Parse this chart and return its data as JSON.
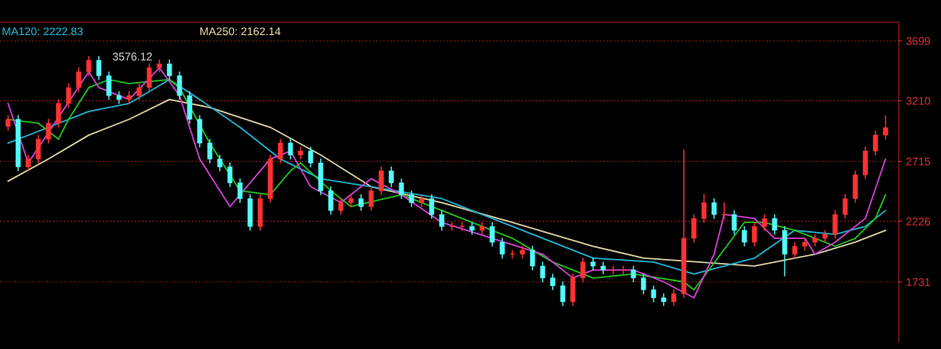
{
  "chart_data": {
    "type": "candlestick",
    "categories": [
      null,
      null,
      null,
      null,
      null,
      null,
      null,
      null,
      null,
      null,
      null,
      null,
      null,
      null,
      null,
      null,
      null,
      null,
      null,
      null,
      null,
      null,
      null,
      null,
      null,
      null,
      null,
      null,
      null,
      null,
      null,
      null,
      null,
      null,
      null,
      null,
      null,
      null,
      null,
      null,
      null,
      null,
      null,
      null,
      null,
      null,
      null,
      null,
      null,
      null,
      null,
      null,
      null,
      null,
      null,
      null,
      null,
      null,
      null,
      null,
      null,
      null,
      null,
      null,
      null,
      null,
      null,
      null,
      null,
      null,
      null,
      null,
      null,
      null,
      null,
      null,
      null,
      null,
      null,
      null,
      null,
      null,
      null,
      null,
      null,
      null,
      null,
      null
    ],
    "ohlc": [
      [
        3000,
        3093,
        2965,
        3058
      ],
      [
        3058,
        3093,
        2635,
        2670
      ],
      [
        2670,
        2769,
        2635,
        2734
      ],
      [
        2734,
        2931,
        2699,
        2896
      ],
      [
        2896,
        3061,
        2861,
        3026
      ],
      [
        3026,
        3223,
        2991,
        3188
      ],
      [
        3188,
        3352,
        3153,
        3317
      ],
      [
        3317,
        3482,
        3282,
        3447
      ],
      [
        3447,
        3576.12,
        3412,
        3540
      ],
      [
        3540,
        3575,
        3379,
        3414
      ],
      [
        3414,
        3449,
        3217,
        3252
      ],
      [
        3252,
        3287,
        3185,
        3220
      ],
      [
        3220,
        3287,
        3185,
        3252
      ],
      [
        3252,
        3352,
        3217,
        3317
      ],
      [
        3317,
        3514,
        3282,
        3479
      ],
      [
        3479,
        3546,
        3444,
        3511
      ],
      [
        3511,
        3546,
        3379,
        3414
      ],
      [
        3414,
        3449,
        3217,
        3252
      ],
      [
        3252,
        3287,
        3023,
        3058
      ],
      [
        3058,
        3093,
        2829,
        2864
      ],
      [
        2864,
        2899,
        2699,
        2734
      ],
      [
        2734,
        2769,
        2635,
        2670
      ],
      [
        2670,
        2705,
        2505,
        2540
      ],
      [
        2540,
        2575,
        2376,
        2411
      ],
      [
        2411,
        2446,
        2149,
        2184
      ],
      [
        2184,
        2446,
        2149,
        2411
      ],
      [
        2411,
        2769,
        2376,
        2734
      ],
      [
        2734,
        2899,
        2699,
        2864
      ],
      [
        2864,
        2899,
        2732,
        2767
      ],
      [
        2767,
        2834,
        2732,
        2799
      ],
      [
        2799,
        2834,
        2667,
        2702
      ],
      [
        2702,
        2737,
        2440,
        2475
      ],
      [
        2475,
        2510,
        2279,
        2314
      ],
      [
        2314,
        2413,
        2279,
        2378
      ],
      [
        2378,
        2446,
        2343,
        2411
      ],
      [
        2411,
        2446,
        2311,
        2346
      ],
      [
        2346,
        2510,
        2311,
        2475
      ],
      [
        2475,
        2672,
        2440,
        2637
      ],
      [
        2637,
        2672,
        2505,
        2540
      ],
      [
        2540,
        2575,
        2408,
        2443
      ],
      [
        2443,
        2478,
        2343,
        2378
      ],
      [
        2378,
        2446,
        2343,
        2411
      ],
      [
        2411,
        2446,
        2246,
        2281
      ],
      [
        2281,
        2316,
        2149,
        2184
      ],
      [
        2184,
        2219,
        2149,
        2184
      ],
      [
        2184,
        2219,
        2149,
        2184
      ],
      [
        2184,
        2219,
        2117,
        2152
      ],
      [
        2152,
        2219,
        2117,
        2184
      ],
      [
        2184,
        2219,
        2020,
        2055
      ],
      [
        2055,
        2090,
        1922,
        1957
      ],
      [
        1957,
        1992,
        1922,
        1957
      ],
      [
        1957,
        2025,
        1922,
        1990
      ],
      [
        1990,
        2025,
        1825,
        1860
      ],
      [
        1860,
        1895,
        1728,
        1763
      ],
      [
        1763,
        1798,
        1664,
        1699
      ],
      [
        1699,
        1734,
        1534,
        1569
      ],
      [
        1569,
        1798,
        1534,
        1763
      ],
      [
        1763,
        1928,
        1728,
        1893
      ],
      [
        1893,
        1928,
        1825,
        1860
      ],
      [
        1860,
        1895,
        1793,
        1828
      ],
      [
        1828,
        1863,
        1793,
        1828
      ],
      [
        1828,
        1863,
        1793,
        1828
      ],
      [
        1828,
        1863,
        1728,
        1763
      ],
      [
        1763,
        1798,
        1631,
        1666
      ],
      [
        1666,
        1701,
        1566,
        1601
      ],
      [
        1601,
        1636,
        1534,
        1569
      ],
      [
        1569,
        1669,
        1534,
        1634
      ],
      [
        1634,
        2812,
        1599,
        2087
      ],
      [
        2087,
        2284,
        2052,
        2249
      ],
      [
        2249,
        2450,
        2214,
        2378
      ],
      [
        2378,
        2413,
        2246,
        2281
      ],
      [
        2281,
        2380,
        2246,
        2281
      ],
      [
        2281,
        2316,
        2117,
        2152
      ],
      [
        2152,
        2187,
        2020,
        2055
      ],
      [
        2055,
        2219,
        2020,
        2184
      ],
      [
        2184,
        2284,
        2149,
        2249
      ],
      [
        2249,
        2284,
        2117,
        2152
      ],
      [
        2152,
        2187,
        1776,
        1957
      ],
      [
        1957,
        2057,
        1922,
        2022
      ],
      [
        2022,
        2090,
        1987,
        2055
      ],
      [
        2055,
        2122,
        2020,
        2087
      ],
      [
        2087,
        2154,
        2052,
        2119
      ],
      [
        2119,
        2316,
        2084,
        2281
      ],
      [
        2281,
        2446,
        2246,
        2411
      ],
      [
        2411,
        2640,
        2376,
        2605
      ],
      [
        2605,
        2834,
        2570,
        2799
      ],
      [
        2799,
        2965,
        2764,
        2930
      ],
      [
        2930,
        3090,
        2895,
        2990
      ]
    ],
    "series": [
      {
        "type": "line",
        "color": "#d8d0a0",
        "values": [
          2553,
          null,
          null,
          null,
          2734,
          null,
          null,
          null,
          2929,
          null,
          null,
          null,
          3058,
          null,
          null,
          null,
          3220,
          null,
          null,
          null,
          3155,
          null,
          null,
          null,
          null,
          null,
          2993,
          null,
          null,
          null,
          null,
          2767,
          null,
          null,
          null,
          null,
          2508,
          null,
          null,
          null,
          null,
          null,
          null,
          2378,
          null,
          null,
          null,
          null,
          null,
          null,
          2216,
          null,
          null,
          null,
          null,
          null,
          null,
          null,
          2022,
          null,
          null,
          null,
          null,
          1925,
          null,
          null,
          null,
          null,
          null,
          null,
          null,
          null,
          null,
          null,
          1860,
          null,
          null,
          null,
          null,
          null,
          1957,
          null,
          null,
          null,
          2055,
          null,
          null,
          2152
        ]
      },
      {
        "type": "line",
        "color": "#20b0d0",
        "values": [
          2864,
          null,
          null,
          null,
          2993,
          null,
          null,
          null,
          3123,
          null,
          null,
          null,
          3188,
          null,
          null,
          null,
          3382,
          null,
          null,
          3220,
          null,
          null,
          null,
          2993,
          null,
          null,
          null,
          2734,
          null,
          null,
          null,
          2573,
          null,
          null,
          null,
          null,
          2508,
          null,
          null,
          null,
          null,
          null,
          null,
          2411,
          null,
          null,
          null,
          null,
          null,
          null,
          2184,
          null,
          null,
          null,
          null,
          null,
          null,
          null,
          1925,
          null,
          null,
          null,
          null,
          null,
          1893,
          null,
          null,
          null,
          1795,
          null,
          null,
          null,
          null,
          null,
          1925,
          null,
          null,
          null,
          2152,
          null,
          null,
          null,
          2119,
          null,
          null,
          2184,
          null,
          2314
        ]
      },
      {
        "type": "line",
        "color": "#20c020",
        "values": [
          3058,
          null,
          null,
          3026,
          null,
          2896,
          3058,
          null,
          3317,
          null,
          3382,
          null,
          3350,
          null,
          null,
          null,
          3382,
          3317,
          null,
          null,
          2864,
          null,
          null,
          2475,
          null,
          null,
          2443,
          null,
          2637,
          2702,
          null,
          null,
          2475,
          null,
          2346,
          null,
          null,
          null,
          null,
          2443,
          null,
          null,
          null,
          2314,
          null,
          null,
          null,
          null,
          null,
          null,
          2087,
          null,
          null,
          null,
          1893,
          null,
          null,
          null,
          1763,
          null,
          null,
          null,
          1795,
          null,
          null,
          null,
          null,
          1731,
          1666,
          null,
          null,
          null,
          null,
          2216,
          null,
          2216,
          null,
          null,
          2152,
          null,
          null,
          null,
          2022,
          null,
          2087,
          null,
          2249,
          2443
        ]
      },
      {
        "type": "line",
        "color": "#d040d0",
        "values": [
          3188,
          null,
          2702,
          null,
          null,
          null,
          null,
          null,
          3447,
          3317,
          null,
          null,
          3220,
          null,
          null,
          3479,
          null,
          3252,
          null,
          2734,
          null,
          null,
          2346,
          null,
          null,
          null,
          2734,
          null,
          2799,
          null,
          2508,
          null,
          null,
          2378,
          null,
          null,
          2573,
          null,
          null,
          2443,
          null,
          null,
          null,
          2216,
          null,
          null,
          null,
          null,
          null,
          null,
          null,
          null,
          null,
          1957,
          null,
          null,
          1763,
          null,
          1828,
          null,
          null,
          null,
          1828,
          null,
          null,
          1731,
          null,
          null,
          1601,
          null,
          1957,
          2281,
          null,
          null,
          2249,
          null,
          2087,
          null,
          null,
          2087,
          1957,
          null,
          2055,
          null,
          null,
          2249,
          null,
          2734
        ]
      }
    ],
    "ylim": [
      1240,
      3850
    ],
    "yticks": [
      1731,
      2226,
      2715,
      3210,
      3699
    ],
    "grid": "y",
    "tick_labels": "y",
    "annotations": [
      "MA120: 2222.83",
      "MA250: 2162.14",
      "3576.12"
    ]
  }
}
